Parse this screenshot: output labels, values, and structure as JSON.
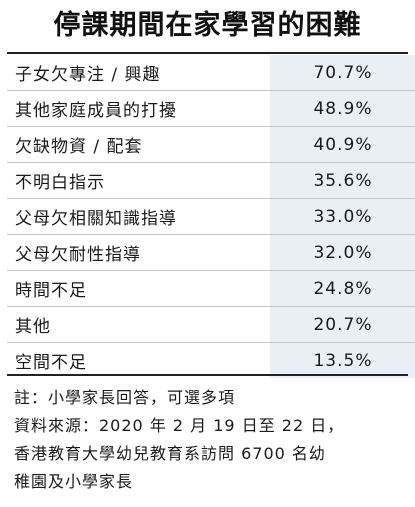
{
  "chart_data": {
    "type": "table",
    "title": "停課期間在家學習的困難",
    "categories": [
      "子女欠專注 / 興趣",
      "其他家庭成員的打擾",
      "欠缺物資 / 配套",
      "不明白指示",
      "父母欠相關知識指導",
      "父母欠耐性指導",
      "時間不足",
      "其他",
      "空間不足"
    ],
    "values": [
      70.7,
      48.9,
      40.9,
      35.6,
      33.0,
      32.0,
      24.8,
      20.7,
      13.5
    ],
    "value_labels": [
      "70.7%",
      "48.9%",
      "40.9%",
      "35.6%",
      "33.0%",
      "32.0%",
      "24.8%",
      "20.7%",
      "13.5%"
    ],
    "unit": "%"
  },
  "notes": [
    "註：小學家長回答，可選多項",
    "資料來源：2020 年 2 月 19 日至 22 日，",
    "香港教育大學幼兒教育系訪問 6700 名幼",
    "稚園及小學家長"
  ],
  "colors": {
    "value_cell_bg": "#e9eff5",
    "row_divider": "#bcc6d1",
    "rule": "#222222",
    "text": "#1a1a1a"
  }
}
